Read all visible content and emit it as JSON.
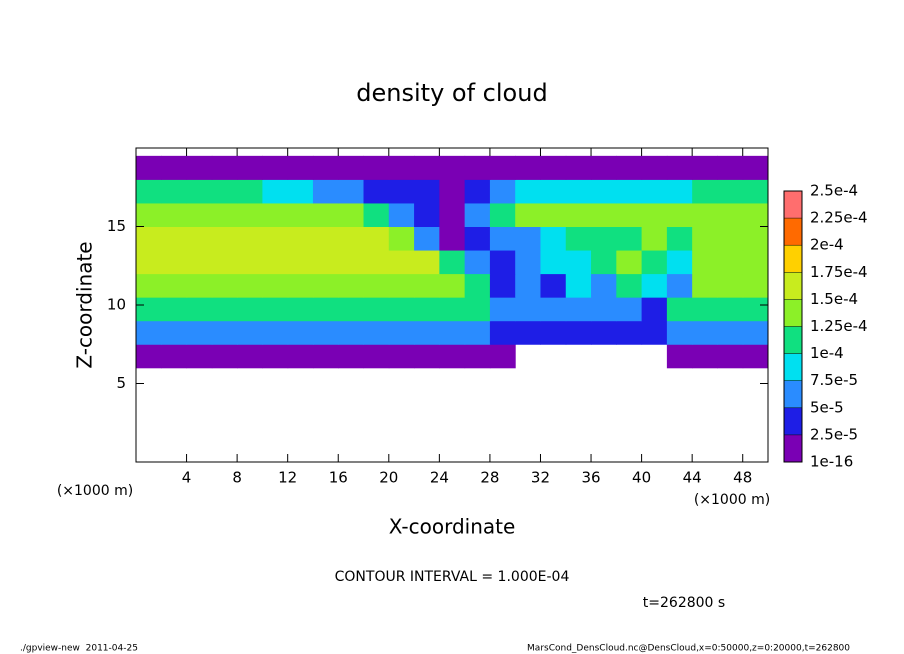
{
  "chart_data": {
    "type": "heatmap",
    "title": "density of cloud",
    "xlabel": "X-coordinate",
    "ylabel": "Z-coordinate",
    "x_unit": "(×1000 m)",
    "y_unit": "(×1000 m)",
    "xlim": [
      0,
      50
    ],
    "ylim": [
      0,
      20
    ],
    "xticks": [
      4,
      8,
      12,
      16,
      20,
      24,
      28,
      32,
      36,
      40,
      44,
      48
    ],
    "yticks": [
      5,
      10,
      15
    ],
    "x": [
      1,
      3,
      5,
      7,
      9,
      11,
      13,
      15,
      17,
      19,
      21,
      23,
      25,
      27,
      29,
      31,
      33,
      35,
      37,
      39,
      41,
      43,
      45,
      47,
      49
    ],
    "y": [
      6.75,
      8.25,
      9.75,
      11.25,
      12.75,
      14.25,
      15.75,
      17.25,
      18.75
    ],
    "z": [
      [
        2e-05,
        2e-05,
        2e-05,
        2e-05,
        2e-05,
        2e-05,
        2e-05,
        2e-05,
        2e-05,
        2e-05,
        2e-05,
        2e-05,
        2e-05,
        2e-05,
        2e-05,
        null,
        null,
        null,
        null,
        null,
        null,
        2e-05,
        2e-05,
        2e-05,
        2e-05
      ],
      [
        6e-05,
        6e-05,
        6e-05,
        6e-05,
        6e-05,
        6e-05,
        6e-05,
        6e-05,
        6e-05,
        6e-05,
        6e-05,
        6e-05,
        6e-05,
        6e-05,
        3e-05,
        3e-05,
        3e-05,
        3e-05,
        3e-05,
        3e-05,
        3e-05,
        6e-05,
        6e-05,
        6e-05,
        6e-05
      ],
      [
        0.00012,
        0.00012,
        0.00012,
        0.00012,
        0.00012,
        0.00012,
        0.00012,
        0.00012,
        0.00012,
        0.00012,
        0.00012,
        0.00012,
        0.00012,
        0.00012,
        7e-05,
        5e-05,
        5e-05,
        5e-05,
        5e-05,
        6e-05,
        3e-05,
        0.00011,
        0.00011,
        0.00011,
        0.00011
      ],
      [
        0.00014,
        0.00014,
        0.00014,
        0.00014,
        0.00014,
        0.00014,
        0.00014,
        0.00014,
        0.00014,
        0.00014,
        0.00014,
        0.00014,
        0.00014,
        0.0001,
        4e-05,
        6e-05,
        4e-05,
        8e-05,
        6e-05,
        0.0001,
        8e-05,
        6e-05,
        0.00013,
        0.00013,
        0.00013
      ],
      [
        0.00015,
        0.00015,
        0.00015,
        0.00015,
        0.00015,
        0.00015,
        0.00015,
        0.00015,
        0.00015,
        0.00015,
        0.00015,
        0.00015,
        0.0001,
        5e-05,
        3e-05,
        5e-05,
        8e-05,
        9e-05,
        0.00012,
        0.00013,
        0.00012,
        8e-05,
        0.000145,
        0.000145,
        0.000145
      ],
      [
        0.00015,
        0.00015,
        0.00015,
        0.00015,
        0.00015,
        0.00015,
        0.00015,
        0.00015,
        0.00015,
        0.00015,
        0.00013,
        7e-05,
        2e-05,
        4e-05,
        5e-05,
        6e-05,
        9e-05,
        0.00012,
        0.00012,
        0.00012,
        0.00013,
        0.00011,
        0.00013,
        0.00014,
        0.00014
      ],
      [
        0.000145,
        0.000145,
        0.000145,
        0.000145,
        0.000145,
        0.000145,
        0.000145,
        0.00013,
        0.00013,
        0.0001,
        5e-05,
        3e-05,
        2e-05,
        5e-05,
        0.00011,
        0.000135,
        0.000135,
        0.000135,
        0.000135,
        0.000135,
        0.00013,
        0.00013,
        0.000135,
        0.000135,
        0.000135
      ],
      [
        0.00012,
        0.00012,
        0.00012,
        0.00012,
        0.00012,
        8e-05,
        8e-05,
        5e-05,
        5e-05,
        3e-05,
        3e-05,
        3e-05,
        2e-05,
        3e-05,
        6e-05,
        8e-05,
        8e-05,
        8e-05,
        9e-05,
        9e-05,
        9e-05,
        9e-05,
        0.00011,
        0.00011,
        0.00011
      ],
      [
        2e-05,
        2e-05,
        2e-05,
        2e-05,
        2e-05,
        2e-05,
        2e-05,
        2e-05,
        2e-05,
        2e-05,
        2e-05,
        1e-05,
        1e-05,
        1e-05,
        1e-05,
        2e-05,
        2e-05,
        2e-05,
        2e-05,
        2e-05,
        2e-05,
        2e-05,
        2e-05,
        2e-05,
        2e-05
      ]
    ],
    "colorbar_ticks": [
      {
        "value": 1e-16,
        "label": "1e-16"
      },
      {
        "value": 2.5e-05,
        "label": "2.5e-5"
      },
      {
        "value": 5e-05,
        "label": "5e-5"
      },
      {
        "value": 7.5e-05,
        "label": "7.5e-5"
      },
      {
        "value": 0.0001,
        "label": "1e-4"
      },
      {
        "value": 0.000125,
        "label": "1.25e-4"
      },
      {
        "value": 0.00015,
        "label": "1.5e-4"
      },
      {
        "value": 0.000175,
        "label": "1.75e-4"
      },
      {
        "value": 0.0002,
        "label": "2e-4"
      },
      {
        "value": 0.000225,
        "label": "2.25e-4"
      },
      {
        "value": 0.00025,
        "label": "2.5e-4"
      }
    ],
    "colors": [
      "#7a00b4",
      "#1e1ee6",
      "#2a8cff",
      "#00e0f0",
      "#10e080",
      "#8cf028",
      "#c8ec1e",
      "#ffd000",
      "#ff6a00",
      "#ff6e6e"
    ],
    "annotation": "CONTOUR INTERVAL = 1.000E-04",
    "time_label": "t=262800 s",
    "footer_left": "./gpview-new  2011-04-25",
    "footer_right": "MarsCond_DensCloud.nc@DensCloud,x=0:50000,z=0:20000,t=262800"
  }
}
